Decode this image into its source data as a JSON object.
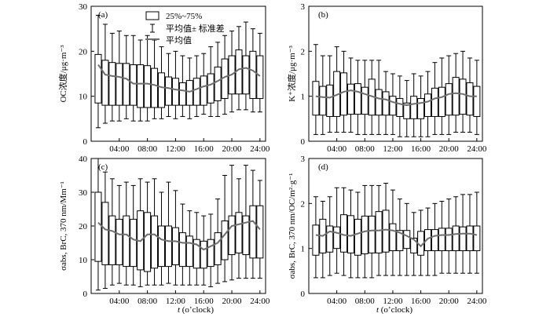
{
  "xlabel_t": "t",
  "xlabel_rest": " (o’clock)",
  "legend": {
    "box": "25%~75%",
    "whisker": "平均值± 标准差",
    "line": "平均值"
  },
  "colors": {
    "mean_line": "#6e6e6e",
    "box_stroke": "#000000"
  },
  "chart_data": [
    {
      "id": "a",
      "type": "box",
      "panel_label": "(a)",
      "ylabel": "OC浓度/μg·m⁻³",
      "ylim": [
        0,
        30
      ],
      "yticks": [
        0,
        10,
        20,
        30
      ],
      "xlim": [
        0,
        24.8
      ],
      "xticks": [
        "04:00",
        "08:00",
        "12:00",
        "16:00",
        "20:00",
        "24:00"
      ],
      "hours": [
        1,
        2,
        3,
        4,
        5,
        6,
        7,
        8,
        9,
        10,
        11,
        12,
        13,
        14,
        15,
        16,
        17,
        18,
        19,
        20,
        21,
        22,
        23,
        24
      ],
      "q1": [
        8.5,
        8.0,
        8.0,
        8.0,
        8.0,
        8.0,
        7.5,
        7.5,
        7.5,
        7.5,
        8.0,
        8.0,
        8.0,
        8.0,
        8.0,
        8.0,
        8.5,
        9.0,
        9.5,
        10.5,
        10.5,
        10.5,
        9.5,
        9.5
      ],
      "q3": [
        19.3,
        18.0,
        17.5,
        17.3,
        17.3,
        17.0,
        17.0,
        16.8,
        16.2,
        15.2,
        14.3,
        14.0,
        13.0,
        13.5,
        14.0,
        14.5,
        15.0,
        16.5,
        18.3,
        19.0,
        20.3,
        19.0,
        20.0,
        19.0
      ],
      "low": [
        3.0,
        4.0,
        4.5,
        4.5,
        5.0,
        4.5,
        4.5,
        4.5,
        5.0,
        5.0,
        5.5,
        5.0,
        5.5,
        5.0,
        5.5,
        6.0,
        5.5,
        5.5,
        6.0,
        6.5,
        7.0,
        7.0,
        6.5,
        6.5
      ],
      "high": [
        28.0,
        26.0,
        24.0,
        24.5,
        23.5,
        23.5,
        22.5,
        23.5,
        22.5,
        21.0,
        19.5,
        20.0,
        19.0,
        18.5,
        19.0,
        19.5,
        21.0,
        22.0,
        23.5,
        24.5,
        25.5,
        26.5,
        25.0,
        24.0
      ],
      "mean": [
        17.0,
        14.8,
        14.5,
        14.3,
        13.9,
        12.8,
        12.8,
        12.8,
        12.5,
        12.0,
        11.8,
        11.5,
        11.3,
        11.0,
        11.6,
        12.2,
        12.6,
        13.4,
        14.3,
        14.8,
        16.0,
        16.3,
        15.7,
        14.5
      ]
    },
    {
      "id": "b",
      "type": "box",
      "panel_label": "(b)",
      "ylabel": "K⁺浓度/μg·m⁻³",
      "ylim": [
        0,
        3
      ],
      "yticks": [
        0,
        1,
        2,
        3
      ],
      "xlim": [
        0,
        24.8
      ],
      "xticks": [
        "04:00",
        "08:00",
        "12:00",
        "16:00",
        "20:00",
        "24:00"
      ],
      "hours": [
        1,
        2,
        3,
        4,
        5,
        6,
        7,
        8,
        9,
        10,
        11,
        12,
        13,
        14,
        15,
        16,
        17,
        18,
        19,
        20,
        21,
        22,
        23,
        24
      ],
      "q1": [
        0.58,
        0.58,
        0.55,
        0.55,
        0.58,
        0.6,
        0.6,
        0.6,
        0.58,
        0.58,
        0.58,
        0.58,
        0.55,
        0.5,
        0.5,
        0.5,
        0.55,
        0.55,
        0.55,
        0.58,
        0.58,
        0.6,
        0.58,
        0.55
      ],
      "q3": [
        1.33,
        1.22,
        1.25,
        1.55,
        1.52,
        1.27,
        1.28,
        1.2,
        1.38,
        1.15,
        1.1,
        1.0,
        0.95,
        0.85,
        1.0,
        0.95,
        1.05,
        1.18,
        1.2,
        1.28,
        1.42,
        1.38,
        1.3,
        1.22
      ],
      "low": [
        0.15,
        0.15,
        0.2,
        0.2,
        0.2,
        0.2,
        0.15,
        0.15,
        0.15,
        0.15,
        0.15,
        0.15,
        0.1,
        0.1,
        0.1,
        0.1,
        0.1,
        0.15,
        0.15,
        0.15,
        0.2,
        0.2,
        0.2,
        0.15
      ],
      "high": [
        2.15,
        1.9,
        1.9,
        2.1,
        2.0,
        1.85,
        1.8,
        1.8,
        1.8,
        1.8,
        1.55,
        1.5,
        1.45,
        1.35,
        1.5,
        1.45,
        1.55,
        1.75,
        1.85,
        1.9,
        1.95,
        2.0,
        1.85,
        1.8
      ],
      "mean": [
        1.0,
        0.98,
        0.97,
        1.03,
        1.1,
        1.13,
        1.1,
        1.05,
        1.0,
        0.95,
        0.93,
        0.87,
        0.83,
        0.8,
        0.83,
        0.85,
        0.88,
        0.95,
        0.98,
        1.05,
        1.07,
        1.05,
        1.0,
        1.0
      ]
    },
    {
      "id": "c",
      "type": "box",
      "panel_label": "(c)",
      "ylabel": "σabs, BrC, 370 nm/Mm⁻¹",
      "ylim": [
        0,
        40
      ],
      "yticks": [
        0,
        10,
        20,
        30,
        40
      ],
      "xlim": [
        0,
        24.8
      ],
      "xticks": [
        "04:00",
        "08:00",
        "12:00",
        "16:00",
        "20:00",
        "24:00"
      ],
      "hours": [
        1,
        2,
        3,
        4,
        5,
        6,
        7,
        8,
        9,
        10,
        11,
        12,
        13,
        14,
        15,
        16,
        17,
        18,
        19,
        20,
        21,
        22,
        23,
        24
      ],
      "q1": [
        9.5,
        8.5,
        8.5,
        8.5,
        8.0,
        8.0,
        7.0,
        6.5,
        7.5,
        8.0,
        8.0,
        8.5,
        8.0,
        8.0,
        7.5,
        7.5,
        8.0,
        8.5,
        10.0,
        11.5,
        12.0,
        11.5,
        10.5,
        10.5
      ],
      "q3": [
        30.0,
        27.0,
        23.0,
        22.0,
        23.0,
        22.0,
        24.5,
        24.0,
        23.0,
        20.0,
        20.0,
        19.5,
        18.0,
        17.0,
        16.0,
        15.5,
        16.0,
        18.0,
        21.5,
        23.0,
        24.0,
        23.0,
        26.0,
        26.0
      ],
      "low": [
        1.0,
        1.5,
        2.5,
        3.0,
        2.5,
        2.5,
        2.0,
        2.5,
        2.5,
        2.5,
        3.0,
        2.5,
        2.5,
        2.5,
        2.5,
        2.5,
        2.0,
        3.0,
        3.5,
        4.0,
        4.5,
        4.5,
        4.5,
        4.5
      ],
      "high": [
        40.0,
        36.0,
        34.0,
        32.0,
        33.0,
        32.0,
        34.0,
        33.0,
        34.0,
        30.0,
        33.0,
        30.5,
        26.5,
        24.5,
        24.0,
        23.0,
        23.5,
        28.0,
        35.0,
        38.0,
        34.0,
        38.0,
        36.5,
        33.5
      ],
      "mean": [
        21.0,
        19.0,
        18.5,
        17.5,
        17.5,
        16.0,
        15.5,
        17.5,
        17.5,
        16.0,
        15.5,
        15.5,
        15.0,
        15.0,
        14.5,
        13.0,
        14.0,
        15.0,
        17.5,
        20.0,
        20.5,
        21.0,
        21.5,
        19.0
      ]
    },
    {
      "id": "d",
      "type": "box",
      "panel_label": "(d)",
      "ylabel": "σabs, BrC, 370 nm/OC/m²·g⁻¹",
      "ylim": [
        0,
        3
      ],
      "yticks": [
        0,
        1,
        2,
        3
      ],
      "xlim": [
        0,
        24.8
      ],
      "xticks": [
        "04:00",
        "08:00",
        "12:00",
        "16:00",
        "20:00",
        "24:00"
      ],
      "hours": [
        1,
        2,
        3,
        4,
        5,
        6,
        7,
        8,
        9,
        10,
        11,
        12,
        13,
        14,
        15,
        16,
        17,
        18,
        19,
        20,
        21,
        22,
        23,
        24
      ],
      "q1": [
        0.85,
        0.9,
        0.92,
        1.0,
        0.92,
        0.9,
        0.85,
        0.88,
        0.9,
        0.9,
        0.92,
        0.95,
        0.95,
        1.0,
        0.9,
        0.85,
        0.95,
        0.95,
        0.95,
        0.95,
        0.95,
        0.95,
        0.95,
        0.95
      ],
      "q3": [
        1.52,
        1.65,
        1.5,
        1.48,
        1.75,
        1.73,
        1.65,
        1.72,
        1.72,
        1.82,
        1.85,
        1.55,
        1.4,
        1.4,
        1.23,
        1.38,
        1.42,
        1.42,
        1.45,
        1.45,
        1.5,
        1.48,
        1.5,
        1.5
      ],
      "low": [
        0.35,
        0.35,
        0.4,
        0.45,
        0.4,
        0.35,
        0.35,
        0.35,
        0.35,
        0.4,
        0.4,
        0.4,
        0.4,
        0.4,
        0.4,
        0.4,
        0.4,
        0.4,
        0.45,
        0.45,
        0.45,
        0.45,
        0.45,
        0.45
      ],
      "high": [
        2.15,
        2.05,
        2.15,
        2.35,
        2.35,
        2.3,
        2.25,
        2.4,
        2.4,
        2.4,
        2.45,
        2.3,
        2.1,
        2.0,
        1.8,
        1.85,
        1.9,
        2.0,
        2.05,
        2.1,
        2.15,
        2.2,
        2.2,
        2.25
      ],
      "mean": [
        1.3,
        1.28,
        1.38,
        1.35,
        1.3,
        1.28,
        1.33,
        1.38,
        1.4,
        1.4,
        1.42,
        1.4,
        1.35,
        1.28,
        1.2,
        1.05,
        1.22,
        1.28,
        1.3,
        1.3,
        1.32,
        1.33,
        1.33,
        1.3
      ]
    }
  ]
}
